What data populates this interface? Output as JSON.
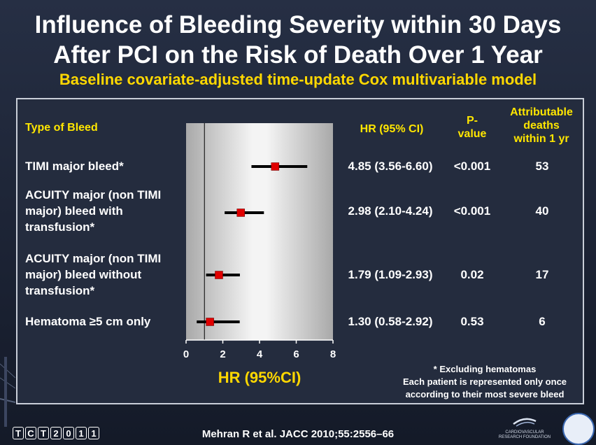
{
  "title_line1": "Influence of Bleeding Severity within 30 Days",
  "title_line2": "After PCI on the Risk of Death Over 1 Year",
  "subtitle": "Baseline covariate-adjusted time-update Cox multivariable model",
  "headers": {
    "type": "Type of Bleed",
    "hr": "HR (95% CI)",
    "p1": "P-",
    "p2": "value",
    "attr1": "Attributable",
    "attr2": "deaths",
    "attr3": "within 1 yr"
  },
  "rows": [
    {
      "lines": [
        "TIMI major bleed*"
      ],
      "hr_text": "4.85 (3.56-6.60)",
      "p": "<0.001",
      "deaths": "53"
    },
    {
      "lines": [
        "ACUITY major (non TIMI",
        "major) bleed with",
        "transfusion*"
      ],
      "hr_text": "2.98 (2.10-4.24)",
      "p": "<0.001",
      "deaths": "40"
    },
    {
      "lines": [
        "ACUITY major (non TIMI",
        "major) bleed without",
        "transfusion*"
      ],
      "hr_text": "1.79 (1.09-2.93)",
      "p": "0.02",
      "deaths": "17"
    },
    {
      "lines": [
        "Hematoma ≥5 cm only"
      ],
      "hr_text": "1.30 (0.58-2.92)",
      "p": "0.53",
      "deaths": "6"
    }
  ],
  "chart_data": {
    "type": "forest",
    "xlabel": "HR (95%CI)",
    "xlim": [
      0,
      8
    ],
    "xticks": [
      0,
      2,
      4,
      6,
      8
    ],
    "reference_line": 1,
    "estimates": [
      {
        "hr": 4.85,
        "lo": 3.56,
        "hi": 6.6
      },
      {
        "hr": 2.98,
        "lo": 2.1,
        "hi": 4.24
      },
      {
        "hr": 1.79,
        "lo": 1.09,
        "hi": 2.93
      },
      {
        "hr": 1.3,
        "lo": 0.58,
        "hi": 2.92
      }
    ],
    "marker_color": "#e00000"
  },
  "notes": {
    "n1": "* Excluding hematomas",
    "n2": "Each patient is represented only once",
    "n3": "according to their most severe bleed"
  },
  "footer": "Mehran R et al. JACC 2010;55:2556–66",
  "logo": {
    "tct": [
      "T",
      "C",
      "T",
      "2",
      "0",
      "1",
      "1"
    ],
    "crf": "CARDIOVASCULAR RESEARCH FOUNDATION"
  }
}
